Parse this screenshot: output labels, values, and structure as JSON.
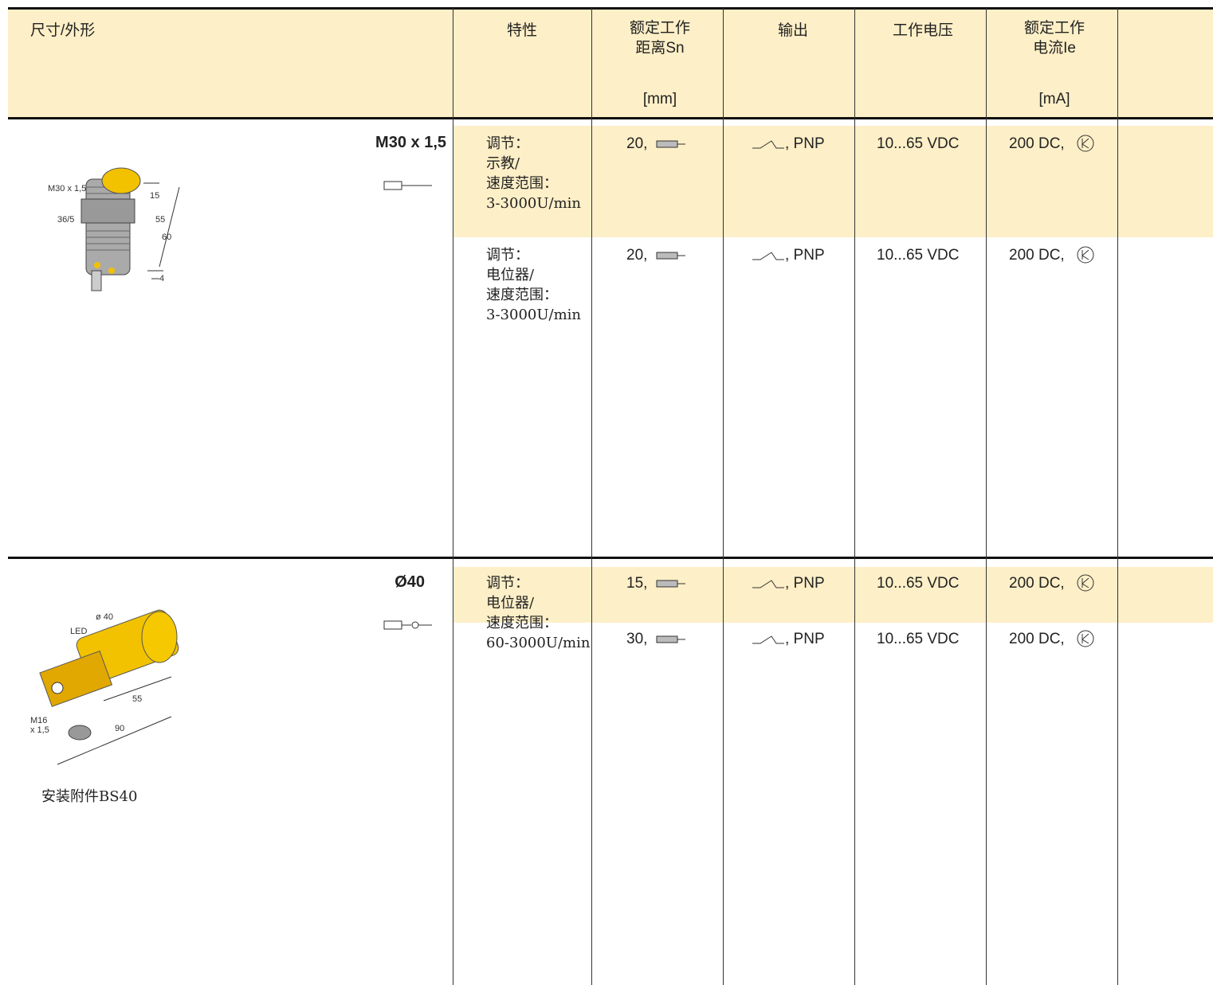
{
  "header": {
    "columns": [
      {
        "lines": [
          "尺寸/外形"
        ]
      },
      {
        "lines": [
          "特性"
        ]
      },
      {
        "lines": [
          "额定工作",
          "距离Sn"
        ],
        "unit": "[mm]"
      },
      {
        "lines": [
          "输出"
        ]
      },
      {
        "lines": [
          "工作电压"
        ]
      },
      {
        "lines": [
          "额定工作",
          "电流Ie"
        ],
        "unit": "[mA]"
      }
    ]
  },
  "sections": [
    {
      "title": "M30 x 1,5",
      "drawing_labels": [
        "M30 x 1,5",
        "36/5",
        "15",
        "55",
        "60",
        "4"
      ],
      "rows": [
        {
          "feature": [
            "调节：",
            "示教/",
            "速度范围：",
            "3-3000U/min"
          ],
          "range": "20,",
          "output": ", PNP",
          "voltage": "10...65 VDC",
          "current": "200 DC,"
        },
        {
          "feature": [
            "调节：",
            "电位器/",
            "速度范围：",
            "3-3000U/min"
          ],
          "range": "20,",
          "output": ", PNP",
          "voltage": "10...65 VDC",
          "current": "200 DC,"
        }
      ]
    },
    {
      "title": "Ø40",
      "drawing_labels": [
        "ø 40",
        "LED",
        "M16",
        "x 1,5",
        "55",
        "90"
      ],
      "note": "安装附件BS40",
      "rows": [
        {
          "feature": [
            "调节：",
            "电位器/",
            "速度范围：",
            "60-3000U/min"
          ],
          "range": "15,",
          "output": ", PNP",
          "voltage": "10...65 VDC",
          "current": "200 DC,"
        },
        {
          "range": "30,",
          "output": ", PNP",
          "voltage": "10...65 VDC",
          "current": "200 DC,"
        }
      ]
    }
  ]
}
